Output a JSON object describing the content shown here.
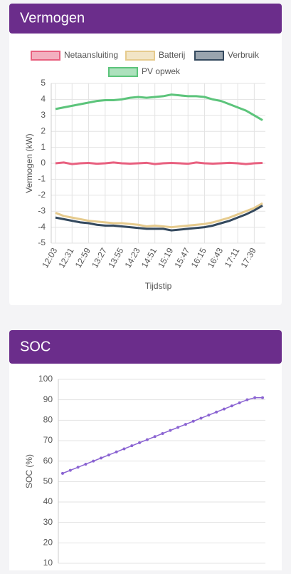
{
  "chart_data": [
    {
      "type": "line",
      "title": "Vermogen",
      "x_label": "Tijdstip",
      "y_label": "Vermogen (kW)",
      "categories": [
        "12:03",
        null,
        "12:31",
        null,
        "12:59",
        null,
        "13:27",
        null,
        "13:55",
        null,
        "14:23",
        null,
        "14:51",
        null,
        "15:19",
        null,
        "15:47",
        null,
        "16:15",
        null,
        "16:43",
        null,
        "17:11",
        null,
        "17:39",
        null
      ],
      "series": [
        {
          "name": "Netaansluiting",
          "color": "#e8607f",
          "values": [
            0.0,
            0.05,
            -0.05,
            0.0,
            0.02,
            -0.03,
            0.0,
            0.05,
            0.0,
            -0.02,
            0.0,
            0.03,
            -0.05,
            0.0,
            0.02,
            0.0,
            -0.03,
            0.05,
            0.0,
            -0.02,
            0.0,
            0.03,
            0.0,
            -0.05,
            0.0,
            0.02
          ]
        },
        {
          "name": "Batterij",
          "color": "#e6cb8e",
          "values": [
            -3.1,
            -3.3,
            -3.4,
            -3.5,
            -3.6,
            -3.65,
            -3.7,
            -3.75,
            -3.75,
            -3.8,
            -3.85,
            -3.95,
            -3.9,
            -3.95,
            -4.0,
            -3.95,
            -3.9,
            -3.85,
            -3.8,
            -3.7,
            -3.55,
            -3.4,
            -3.2,
            -3.0,
            -2.8,
            -2.5
          ]
        },
        {
          "name": "Verbruik",
          "color": "#34495e",
          "values": [
            -3.4,
            -3.5,
            -3.6,
            -3.7,
            -3.75,
            -3.85,
            -3.9,
            -3.9,
            -3.95,
            -4.0,
            -4.05,
            -4.1,
            -4.1,
            -4.1,
            -4.2,
            -4.15,
            -4.1,
            -4.05,
            -4.0,
            -3.9,
            -3.75,
            -3.6,
            -3.4,
            -3.2,
            -2.95,
            -2.65
          ]
        },
        {
          "name": "PV opwek",
          "color": "#5cc47b",
          "values": [
            3.4,
            3.5,
            3.6,
            3.7,
            3.8,
            3.9,
            3.95,
            3.95,
            4.0,
            4.1,
            4.15,
            4.1,
            4.15,
            4.2,
            4.3,
            4.25,
            4.2,
            4.2,
            4.15,
            4.0,
            3.9,
            3.7,
            3.5,
            3.3,
            3.0,
            2.7
          ]
        }
      ],
      "ylim": [
        -5,
        5
      ],
      "yticks": [
        -5,
        -4,
        -3,
        -2,
        -1,
        0,
        1,
        2,
        3,
        4,
        5
      ],
      "grid": true
    },
    {
      "type": "line",
      "title": "SOC",
      "y_label": "SOC (%)",
      "categories": [
        null,
        null,
        null,
        null,
        null,
        null,
        null,
        null,
        null,
        null,
        null,
        null,
        null,
        null,
        null,
        null,
        null,
        null,
        null,
        null,
        null,
        null,
        null,
        null,
        null,
        null,
        null
      ],
      "series": [
        {
          "name": "SOC",
          "color": "#8a63d2",
          "values": [
            54,
            55.5,
            57,
            58.5,
            60,
            61.5,
            63,
            64.5,
            66,
            67.5,
            69,
            70.5,
            72,
            73.5,
            75,
            76.5,
            78,
            79.5,
            81,
            82.5,
            84,
            85.5,
            87,
            88.5,
            90,
            91,
            91
          ]
        }
      ],
      "ylim": [
        10,
        100
      ],
      "yticks": [
        10,
        20,
        30,
        40,
        50,
        60,
        70,
        80,
        90,
        100
      ],
      "grid": true
    }
  ]
}
